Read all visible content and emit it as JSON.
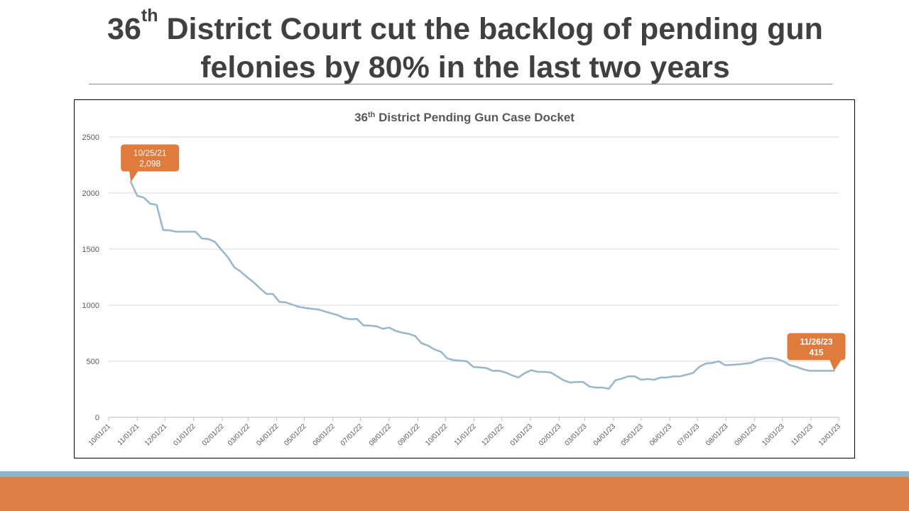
{
  "slide": {
    "title_number": "36",
    "title_suffix": "th",
    "title_rest_line1": " District Court cut the backlog of pending gun",
    "title_line2": "felonies by 80% in the last two years"
  },
  "colors": {
    "line": "#9ab8cc",
    "callout": "#e07b3e",
    "band_orange": "#dd8047",
    "band_blue": "#8fb5c9"
  },
  "chart_data": {
    "type": "line",
    "title_prefix": "36",
    "title_suffix": "th",
    "title_rest": " District Pending Gun Case Docket",
    "xlabel": "",
    "ylabel": "",
    "ylim": [
      0,
      2500
    ],
    "yticks": [
      "0",
      "500",
      "1000",
      "1500",
      "2000",
      "2500"
    ],
    "xticks": [
      "10/01/21",
      "11/01/21",
      "12/01/21",
      "01/01/22",
      "02/01/22",
      "03/01/22",
      "04/01/22",
      "05/01/22",
      "06/01/22",
      "07/01/22",
      "08/01/22",
      "09/01/22",
      "10/01/22",
      "11/01/22",
      "12/01/22",
      "01/01/23",
      "02/01/23",
      "03/01/23",
      "04/01/23",
      "05/01/23",
      "06/01/23",
      "07/01/23",
      "08/01/23",
      "09/01/23",
      "10/01/23",
      "11/01/23",
      "12/01/23"
    ],
    "grid": true,
    "legend": "none",
    "series": [
      {
        "values": [
          [
            "2021-10-25",
            2098
          ],
          [
            "2021-11-01",
            1975
          ],
          [
            "2021-11-08",
            1960
          ],
          [
            "2021-11-15",
            1905
          ],
          [
            "2021-11-22",
            1895
          ],
          [
            "2021-11-29",
            1670
          ],
          [
            "2021-12-06",
            1668
          ],
          [
            "2021-12-13",
            1655
          ],
          [
            "2021-12-20",
            1655
          ],
          [
            "2021-12-27",
            1655
          ],
          [
            "2022-01-03",
            1655
          ],
          [
            "2022-01-10",
            1595
          ],
          [
            "2022-01-17",
            1590
          ],
          [
            "2022-01-24",
            1565
          ],
          [
            "2022-01-31",
            1495
          ],
          [
            "2022-02-07",
            1430
          ],
          [
            "2022-02-14",
            1340
          ],
          [
            "2022-02-21",
            1300
          ],
          [
            "2022-02-28",
            1250
          ],
          [
            "2022-03-07",
            1205
          ],
          [
            "2022-03-14",
            1150
          ],
          [
            "2022-03-21",
            1100
          ],
          [
            "2022-03-28",
            1100
          ],
          [
            "2022-04-04",
            1030
          ],
          [
            "2022-04-11",
            1025
          ],
          [
            "2022-04-18",
            1005
          ],
          [
            "2022-04-25",
            985
          ],
          [
            "2022-05-02",
            975
          ],
          [
            "2022-05-09",
            968
          ],
          [
            "2022-05-16",
            962
          ],
          [
            "2022-05-23",
            945
          ],
          [
            "2022-05-30",
            928
          ],
          [
            "2022-06-06",
            912
          ],
          [
            "2022-06-13",
            885
          ],
          [
            "2022-06-20",
            875
          ],
          [
            "2022-06-27",
            878
          ],
          [
            "2022-07-04",
            820
          ],
          [
            "2022-07-11",
            818
          ],
          [
            "2022-07-18",
            812
          ],
          [
            "2022-07-25",
            790
          ],
          [
            "2022-08-01",
            800
          ],
          [
            "2022-08-08",
            770
          ],
          [
            "2022-08-15",
            755
          ],
          [
            "2022-08-22",
            745
          ],
          [
            "2022-08-29",
            725
          ],
          [
            "2022-09-05",
            660
          ],
          [
            "2022-09-12",
            640
          ],
          [
            "2022-09-19",
            605
          ],
          [
            "2022-09-26",
            585
          ],
          [
            "2022-10-03",
            525
          ],
          [
            "2022-10-10",
            510
          ],
          [
            "2022-10-17",
            505
          ],
          [
            "2022-10-24",
            500
          ],
          [
            "2022-10-31",
            450
          ],
          [
            "2022-11-07",
            445
          ],
          [
            "2022-11-14",
            440
          ],
          [
            "2022-11-21",
            415
          ],
          [
            "2022-11-28",
            415
          ],
          [
            "2022-12-05",
            400
          ],
          [
            "2022-12-12",
            375
          ],
          [
            "2022-12-19",
            355
          ],
          [
            "2022-12-26",
            395
          ],
          [
            "2023-01-02",
            420
          ],
          [
            "2023-01-09",
            405
          ],
          [
            "2023-01-16",
            405
          ],
          [
            "2023-01-23",
            400
          ],
          [
            "2023-01-30",
            365
          ],
          [
            "2023-02-06",
            330
          ],
          [
            "2023-02-13",
            310
          ],
          [
            "2023-02-20",
            315
          ],
          [
            "2023-02-27",
            315
          ],
          [
            "2023-03-06",
            275
          ],
          [
            "2023-03-13",
            265
          ],
          [
            "2023-03-20",
            265
          ],
          [
            "2023-03-27",
            255
          ],
          [
            "2023-04-03",
            330
          ],
          [
            "2023-04-10",
            345
          ],
          [
            "2023-04-17",
            365
          ],
          [
            "2023-04-24",
            365
          ],
          [
            "2023-05-01",
            335
          ],
          [
            "2023-05-08",
            342
          ],
          [
            "2023-05-15",
            335
          ],
          [
            "2023-05-22",
            355
          ],
          [
            "2023-05-29",
            355
          ],
          [
            "2023-06-05",
            365
          ],
          [
            "2023-06-12",
            365
          ],
          [
            "2023-06-19",
            380
          ],
          [
            "2023-06-26",
            395
          ],
          [
            "2023-07-03",
            450
          ],
          [
            "2023-07-10",
            480
          ],
          [
            "2023-07-17",
            485
          ],
          [
            "2023-07-24",
            500
          ],
          [
            "2023-07-31",
            465
          ],
          [
            "2023-08-07",
            468
          ],
          [
            "2023-08-14",
            472
          ],
          [
            "2023-08-21",
            478
          ],
          [
            "2023-08-28",
            485
          ],
          [
            "2023-09-04",
            510
          ],
          [
            "2023-09-11",
            525
          ],
          [
            "2023-09-18",
            530
          ],
          [
            "2023-09-25",
            520
          ],
          [
            "2023-10-02",
            500
          ],
          [
            "2023-10-09",
            465
          ],
          [
            "2023-10-16",
            450
          ],
          [
            "2023-10-23",
            430
          ],
          [
            "2023-10-30",
            415
          ],
          [
            "2023-11-06",
            415
          ],
          [
            "2023-11-13",
            415
          ],
          [
            "2023-11-20",
            415
          ],
          [
            "2023-11-26",
            415
          ]
        ]
      }
    ],
    "annotations": [
      {
        "x": "2021-10-25",
        "y": 2098,
        "line1": "10/25/21",
        "line2": "2,098",
        "bold": false
      },
      {
        "x": "2023-11-26",
        "y": 415,
        "line1": "11/26/23",
        "line2": "415",
        "bold": true
      }
    ]
  }
}
